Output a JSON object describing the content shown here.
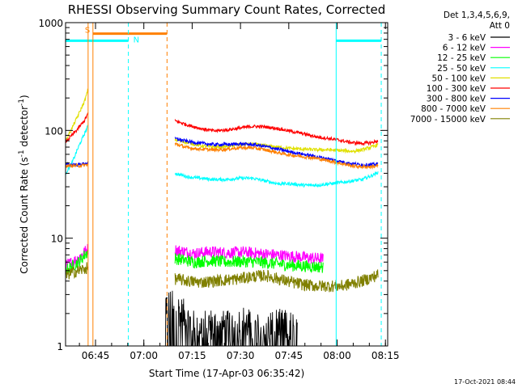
{
  "chart_data": {
    "type": "line",
    "title": "RHESSI Observing Summary Count Rates, Corrected",
    "xlabel": "Start Time (17-Apr-03 06:35:42)",
    "ylabel_main": "Corrected Count Rate (s",
    "ylabel_sup1": "-1",
    "ylabel_mid": " detector",
    "ylabel_sup2": "-1",
    "ylabel_end": ")",
    "y_scale": "log",
    "ylim": [
      1,
      1000
    ],
    "xlim_minutes": [
      0,
      100
    ],
    "x_ticks": [
      {
        "label": "06:45",
        "t": 9.3
      },
      {
        "label": "07:00",
        "t": 24.3
      },
      {
        "label": "07:15",
        "t": 39.3
      },
      {
        "label": "07:30",
        "t": 54.3
      },
      {
        "label": "07:45",
        "t": 69.3
      },
      {
        "label": "08:00",
        "t": 84.3
      },
      {
        "label": "08:15",
        "t": 99.3
      }
    ],
    "y_ticks": [
      {
        "label": "1",
        "v": 1
      },
      {
        "label": "10",
        "v": 10
      },
      {
        "label": "100",
        "v": 100
      },
      {
        "label": "1000",
        "v": 1000
      }
    ],
    "legend_header": [
      "Det 1,3,4,5,6,9,",
      "Att 0"
    ],
    "series": [
      {
        "name": "3 - 6 keV",
        "color": "#000000",
        "seg1": [],
        "seg2": [
          [
            31,
            2.5
          ],
          [
            35,
            2.2
          ],
          [
            40,
            1.5
          ],
          [
            45,
            1.6
          ],
          [
            50,
            1.5
          ],
          [
            55,
            1.7
          ],
          [
            60,
            1.4
          ],
          [
            65,
            1.6
          ],
          [
            70,
            1.5
          ],
          [
            72,
            1.5
          ]
        ]
      },
      {
        "name": "6 - 12 keV",
        "color": "#ff00ff",
        "seg1": [
          [
            0,
            5.5
          ],
          [
            2,
            6.0
          ],
          [
            4,
            6.5
          ],
          [
            6,
            7.5
          ],
          [
            7,
            8.0
          ]
        ],
        "seg2": [
          [
            34,
            7.8
          ],
          [
            40,
            7.2
          ],
          [
            45,
            7.5
          ],
          [
            50,
            7.3
          ],
          [
            55,
            7.4
          ],
          [
            60,
            7.2
          ],
          [
            65,
            7.0
          ],
          [
            70,
            6.8
          ],
          [
            75,
            6.6
          ],
          [
            80,
            6.4
          ]
        ]
      },
      {
        "name": "12 - 25 keV",
        "color": "#00ff00",
        "seg1": [
          [
            0,
            5.0
          ],
          [
            2,
            5.5
          ],
          [
            4,
            6.0
          ],
          [
            6,
            7.0
          ],
          [
            7,
            7.5
          ]
        ],
        "seg2": [
          [
            34,
            6.5
          ],
          [
            40,
            6.0
          ],
          [
            45,
            6.2
          ],
          [
            50,
            6.0
          ],
          [
            55,
            6.1
          ],
          [
            60,
            6.0
          ],
          [
            65,
            5.8
          ],
          [
            70,
            5.6
          ],
          [
            75,
            5.5
          ],
          [
            80,
            5.4
          ]
        ]
      },
      {
        "name": "25 - 50 keV",
        "color": "#00ffff",
        "seg1": [
          [
            0,
            40
          ],
          [
            2,
            50
          ],
          [
            4,
            70
          ],
          [
            6,
            95
          ],
          [
            7,
            110
          ]
        ],
        "seg2": [
          [
            34,
            40
          ],
          [
            38,
            37
          ],
          [
            42,
            36
          ],
          [
            46,
            35
          ],
          [
            50,
            35
          ],
          [
            54,
            36
          ],
          [
            58,
            36
          ],
          [
            62,
            34
          ],
          [
            66,
            32
          ],
          [
            70,
            32
          ],
          [
            74,
            31
          ],
          [
            78,
            31
          ],
          [
            82,
            32
          ],
          [
            86,
            33
          ],
          [
            89,
            34
          ],
          [
            92,
            35
          ],
          [
            95,
            38
          ],
          [
            97,
            41
          ]
        ]
      },
      {
        "name": "50 - 100 keV",
        "color": "#e0e000",
        "seg1": [
          [
            0,
            80
          ],
          [
            2,
            105
          ],
          [
            4,
            140
          ],
          [
            6,
            190
          ],
          [
            7,
            240
          ]
        ],
        "seg2": [
          [
            34,
            82
          ],
          [
            38,
            77
          ],
          [
            42,
            72
          ],
          [
            46,
            70
          ],
          [
            50,
            71
          ],
          [
            54,
            74
          ],
          [
            58,
            75
          ],
          [
            62,
            72
          ],
          [
            66,
            70
          ],
          [
            70,
            68
          ],
          [
            74,
            67
          ],
          [
            78,
            66
          ],
          [
            82,
            66
          ],
          [
            86,
            65
          ],
          [
            89,
            64
          ],
          [
            92,
            66
          ],
          [
            95,
            70
          ],
          [
            97,
            74
          ]
        ]
      },
      {
        "name": "100 - 300 keV",
        "color": "#ff0000",
        "seg1": [
          [
            0,
            78
          ],
          [
            2,
            90
          ],
          [
            4,
            105
          ],
          [
            6,
            125
          ],
          [
            7,
            145
          ]
        ],
        "seg2": [
          [
            34,
            123
          ],
          [
            38,
            112
          ],
          [
            42,
            104
          ],
          [
            46,
            99
          ],
          [
            50,
            101
          ],
          [
            54,
            105
          ],
          [
            58,
            109
          ],
          [
            62,
            108
          ],
          [
            66,
            104
          ],
          [
            70,
            98
          ],
          [
            74,
            93
          ],
          [
            78,
            87
          ],
          [
            82,
            84
          ],
          [
            86,
            80
          ],
          [
            89,
            77
          ],
          [
            92,
            76
          ],
          [
            95,
            77
          ],
          [
            97,
            80
          ]
        ]
      },
      {
        "name": "300 - 800 keV",
        "color": "#0000ff",
        "seg1": [
          [
            0,
            48
          ],
          [
            4,
            48
          ],
          [
            7,
            50
          ]
        ],
        "seg2": [
          [
            34,
            84
          ],
          [
            38,
            79
          ],
          [
            42,
            76
          ],
          [
            46,
            74
          ],
          [
            50,
            74
          ],
          [
            54,
            75
          ],
          [
            58,
            74
          ],
          [
            62,
            71
          ],
          [
            66,
            67
          ],
          [
            70,
            63
          ],
          [
            74,
            60
          ],
          [
            78,
            57
          ],
          [
            82,
            54
          ],
          [
            86,
            51
          ],
          [
            89,
            49
          ],
          [
            92,
            48
          ],
          [
            95,
            48
          ],
          [
            97,
            49
          ]
        ]
      },
      {
        "name": "800 - 7000 keV",
        "color": "#ff8000",
        "seg1": [
          [
            0,
            47
          ],
          [
            4,
            47
          ],
          [
            7,
            48
          ]
        ],
        "seg2": [
          [
            34,
            75
          ],
          [
            38,
            69
          ],
          [
            42,
            67
          ],
          [
            46,
            66
          ],
          [
            50,
            67
          ],
          [
            54,
            69
          ],
          [
            58,
            69
          ],
          [
            62,
            66
          ],
          [
            66,
            62
          ],
          [
            70,
            59
          ],
          [
            74,
            57
          ],
          [
            78,
            55
          ],
          [
            82,
            52
          ],
          [
            86,
            49
          ],
          [
            89,
            47
          ],
          [
            92,
            46
          ],
          [
            95,
            46
          ],
          [
            97,
            47
          ]
        ]
      },
      {
        "name": "7000 - 15000 keV",
        "color": "#808000",
        "seg1": [
          [
            0,
            4.5
          ],
          [
            2,
            4.8
          ],
          [
            4,
            5.0
          ],
          [
            6,
            5.2
          ],
          [
            7,
            5.3
          ]
        ],
        "seg2": [
          [
            34,
            4.2
          ],
          [
            38,
            4.0
          ],
          [
            42,
            3.9
          ],
          [
            46,
            4.0
          ],
          [
            50,
            4.1
          ],
          [
            54,
            4.2
          ],
          [
            58,
            4.4
          ],
          [
            62,
            4.5
          ],
          [
            66,
            4.2
          ],
          [
            70,
            3.9
          ],
          [
            74,
            3.7
          ],
          [
            78,
            3.6
          ],
          [
            82,
            3.6
          ],
          [
            86,
            3.6
          ],
          [
            89,
            3.8
          ],
          [
            92,
            4.0
          ],
          [
            95,
            4.3
          ],
          [
            97,
            4.6
          ]
        ]
      }
    ],
    "event_lines": [
      {
        "t": 0,
        "color": "#00ffff",
        "dashed": false
      },
      {
        "t": 7,
        "color": "#ff8000",
        "dashed": false
      },
      {
        "t": 8.5,
        "color": "#ff8000",
        "dashed": false
      },
      {
        "t": 19.5,
        "color": "#00ffff",
        "dashed": true
      },
      {
        "t": 31.5,
        "color": "#ff8000",
        "dashed": true
      },
      {
        "t": 84,
        "color": "#00ffff",
        "dashed": false
      },
      {
        "t": 98,
        "color": "#00ffff",
        "dashed": true
      }
    ],
    "flag_bars": [
      {
        "t0": 0,
        "t1": 19.5,
        "v": 680,
        "color": "#00ffff"
      },
      {
        "t0": 8.5,
        "t1": 31.5,
        "v": 790,
        "color": "#ff8000"
      },
      {
        "t0": 84,
        "t1": 98,
        "v": 680,
        "color": "#00ffff"
      }
    ],
    "flag_labels": [
      {
        "text": "S",
        "t": 6.0,
        "v": 860,
        "color": "#ff8000"
      },
      {
        "text": "N",
        "t": 21.0,
        "v": 700,
        "color": "#00ffff"
      }
    ],
    "footer": "17-Oct-2021 08:44"
  }
}
